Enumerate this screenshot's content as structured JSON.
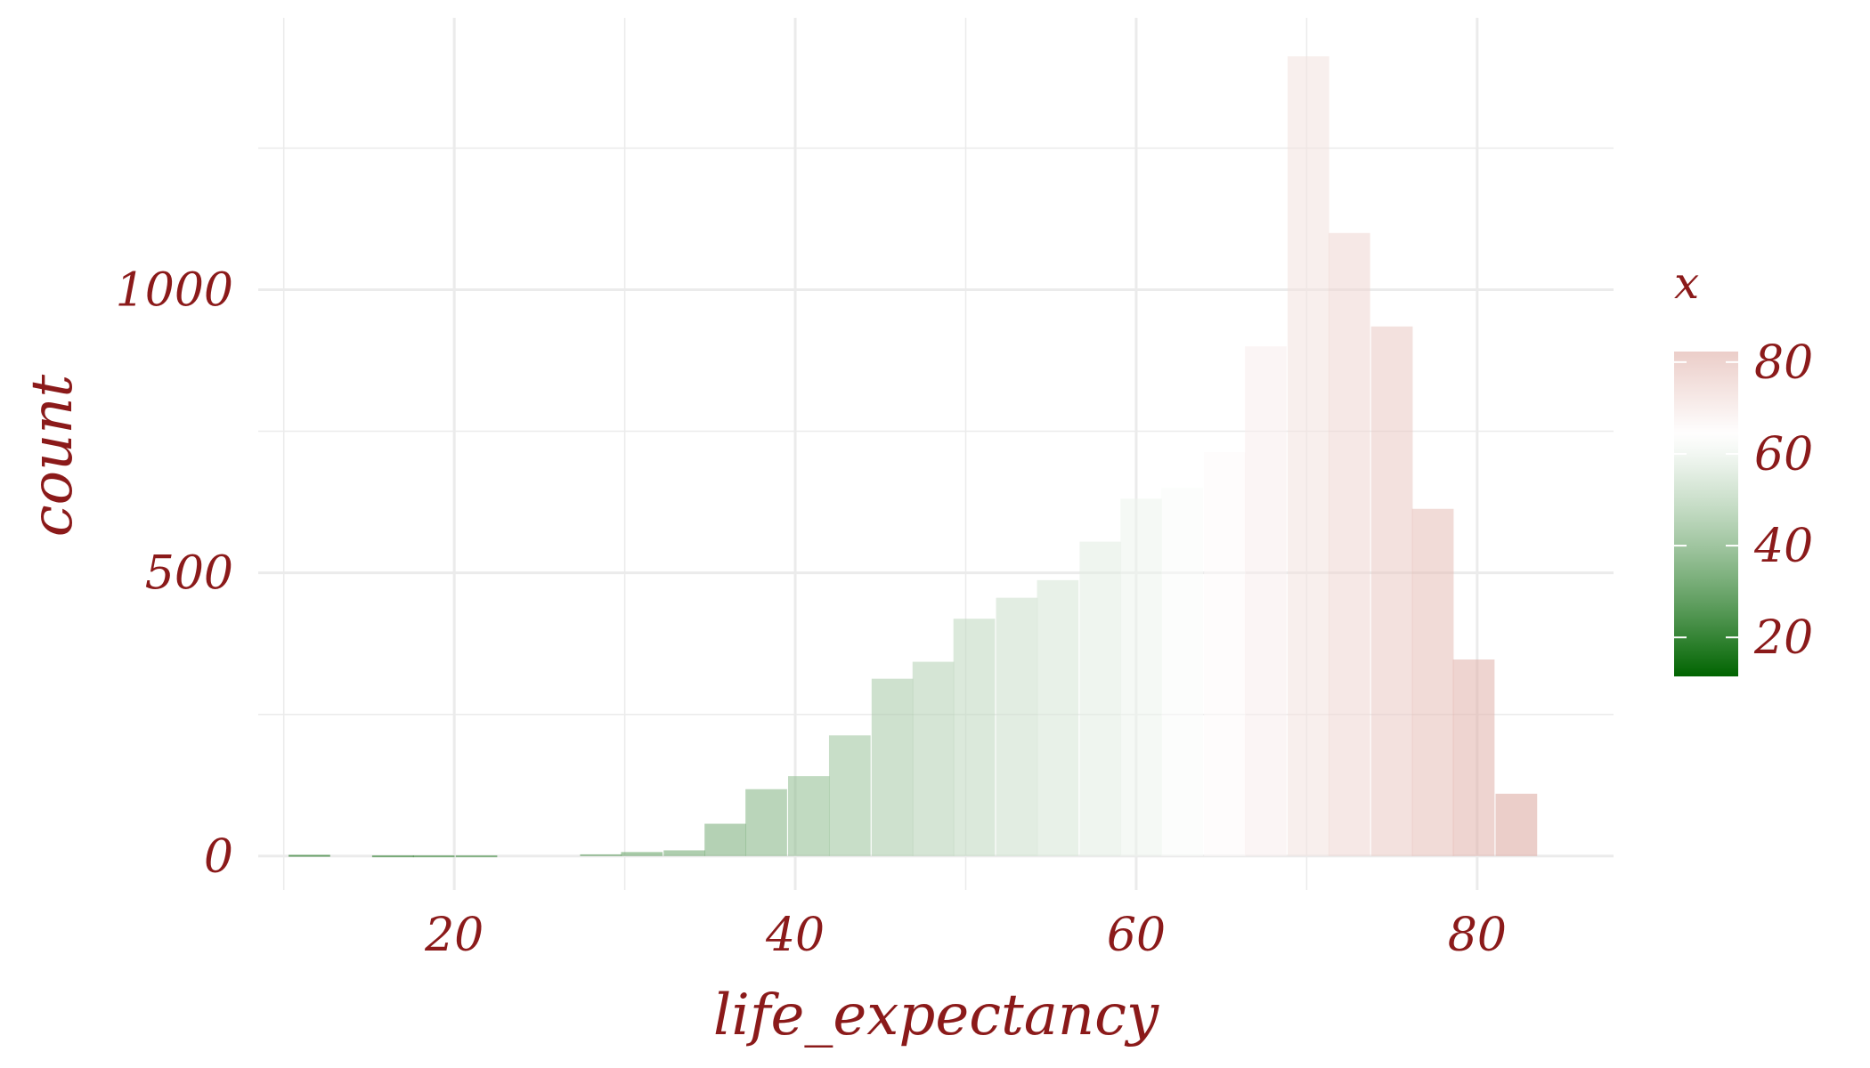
{
  "chart_data": {
    "type": "bar",
    "subtype": "histogram",
    "title": "",
    "xlabel": "life_expectancy",
    "ylabel": "count",
    "xlim": [
      8.5,
      88
    ],
    "ylim": [
      -60,
      1480
    ],
    "x_ticks": [
      20,
      40,
      60,
      80
    ],
    "y_ticks": [
      0,
      500,
      1000
    ],
    "x_tick_labels": [
      "20",
      "40",
      "60",
      "80"
    ],
    "y_tick_labels": [
      "0",
      "500",
      "1000"
    ],
    "grid": true,
    "bin_width": 2.44,
    "bins": [
      {
        "x": 11.5,
        "count": 2
      },
      {
        "x": 13.9,
        "count": 0
      },
      {
        "x": 16.4,
        "count": 1
      },
      {
        "x": 18.8,
        "count": 1
      },
      {
        "x": 21.3,
        "count": 1
      },
      {
        "x": 23.7,
        "count": 0
      },
      {
        "x": 26.1,
        "count": 0
      },
      {
        "x": 28.6,
        "count": 3
      },
      {
        "x": 31.0,
        "count": 7
      },
      {
        "x": 33.5,
        "count": 10
      },
      {
        "x": 35.9,
        "count": 57
      },
      {
        "x": 38.3,
        "count": 118
      },
      {
        "x": 40.8,
        "count": 141
      },
      {
        "x": 43.2,
        "count": 213
      },
      {
        "x": 45.7,
        "count": 313
      },
      {
        "x": 48.1,
        "count": 343
      },
      {
        "x": 50.5,
        "count": 419
      },
      {
        "x": 53.0,
        "count": 456
      },
      {
        "x": 55.4,
        "count": 487
      },
      {
        "x": 57.9,
        "count": 555
      },
      {
        "x": 60.3,
        "count": 631
      },
      {
        "x": 62.7,
        "count": 650
      },
      {
        "x": 65.2,
        "count": 713
      },
      {
        "x": 67.6,
        "count": 900
      },
      {
        "x": 70.1,
        "count": 1412
      },
      {
        "x": 72.5,
        "count": 1100
      },
      {
        "x": 75.0,
        "count": 935
      },
      {
        "x": 77.4,
        "count": 613
      },
      {
        "x": 79.8,
        "count": 347
      },
      {
        "x": 82.3,
        "count": 110
      }
    ],
    "colorbar": {
      "title": "x",
      "ticks": [
        20,
        40,
        60,
        80
      ],
      "tick_labels": [
        "20",
        "40",
        "60",
        "80"
      ],
      "range": [
        11.5,
        82.3
      ],
      "midpoint": 64,
      "low_color": "#006400",
      "mid_color": "#ffffff",
      "high_color": "#dba59c",
      "legend_position": "right"
    },
    "colors": {
      "text": "#8b1a1a",
      "grid": "#ebebeb"
    }
  }
}
